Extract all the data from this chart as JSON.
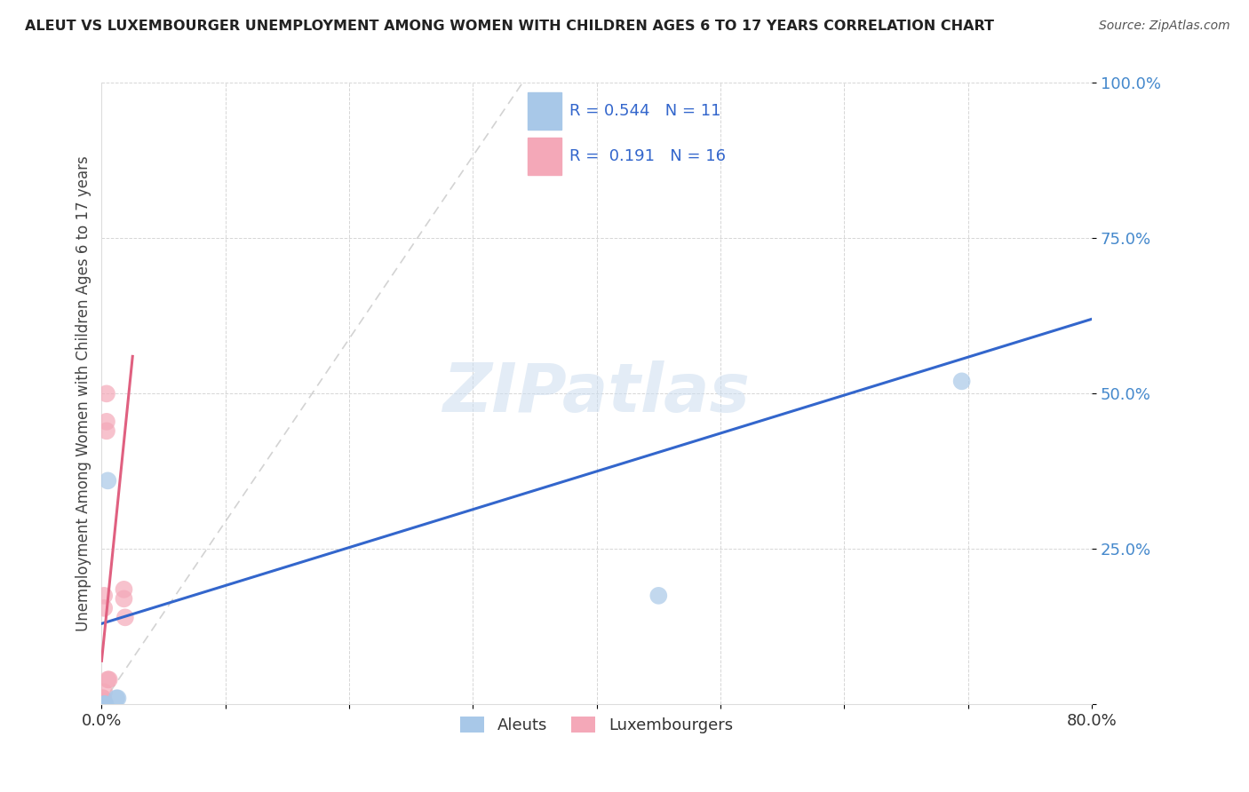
{
  "title": "ALEUT VS LUXEMBOURGER UNEMPLOYMENT AMONG WOMEN WITH CHILDREN AGES 6 TO 17 YEARS CORRELATION CHART",
  "source": "Source: ZipAtlas.com",
  "ylabel": "Unemployment Among Women with Children Ages 6 to 17 years",
  "xlim": [
    0,
    0.8
  ],
  "ylim": [
    0,
    1.0
  ],
  "xtick_positions": [
    0.0,
    0.1,
    0.2,
    0.3,
    0.4,
    0.5,
    0.6,
    0.7,
    0.8
  ],
  "xticklabels": [
    "0.0%",
    "",
    "",
    "",
    "",
    "",
    "",
    "",
    "80.0%"
  ],
  "ytick_positions": [
    0.0,
    0.25,
    0.5,
    0.75,
    1.0
  ],
  "ytick_labels": [
    "",
    "25.0%",
    "50.0%",
    "75.0%",
    "100.0%"
  ],
  "aleuts_color": "#a8c8e8",
  "luxembourgers_color": "#f4a8b8",
  "aleuts_line_color": "#3366cc",
  "luxembourgers_line_color": "#e06080",
  "aleuts_R": 0.544,
  "aleuts_N": 11,
  "luxembourgers_R": 0.191,
  "luxembourgers_N": 16,
  "aleuts_points": [
    [
      0.002,
      0.0
    ],
    [
      0.002,
      0.0
    ],
    [
      0.002,
      0.0
    ],
    [
      0.002,
      0.0
    ],
    [
      0.003,
      0.0
    ],
    [
      0.003,
      0.0
    ],
    [
      0.005,
      0.36
    ],
    [
      0.012,
      0.01
    ],
    [
      0.013,
      0.01
    ],
    [
      0.45,
      0.175
    ],
    [
      0.695,
      0.52
    ]
  ],
  "luxembourgers_points": [
    [
      0.001,
      0.005
    ],
    [
      0.001,
      0.005
    ],
    [
      0.001,
      0.01
    ],
    [
      0.001,
      0.01
    ],
    [
      0.002,
      0.005
    ],
    [
      0.002,
      0.02
    ],
    [
      0.002,
      0.155
    ],
    [
      0.002,
      0.175
    ],
    [
      0.005,
      0.04
    ],
    [
      0.006,
      0.04
    ],
    [
      0.004,
      0.5
    ],
    [
      0.004,
      0.44
    ],
    [
      0.004,
      0.455
    ],
    [
      0.018,
      0.185
    ],
    [
      0.018,
      0.17
    ],
    [
      0.019,
      0.14
    ]
  ],
  "aleuts_line_x": [
    0.0,
    0.8
  ],
  "aleuts_line_y": [
    0.13,
    0.62
  ],
  "lux_line_x": [
    0.0,
    0.025
  ],
  "lux_line_y": [
    0.07,
    0.56
  ],
  "gray_line_x": [
    0.0,
    0.34
  ],
  "gray_line_y": [
    0.0,
    1.0
  ],
  "watermark": "ZIPatlas",
  "background_color": "#ffffff",
  "grid_color": "#cccccc",
  "tick_color": "#4488cc",
  "legend_text_color": "#3366cc"
}
